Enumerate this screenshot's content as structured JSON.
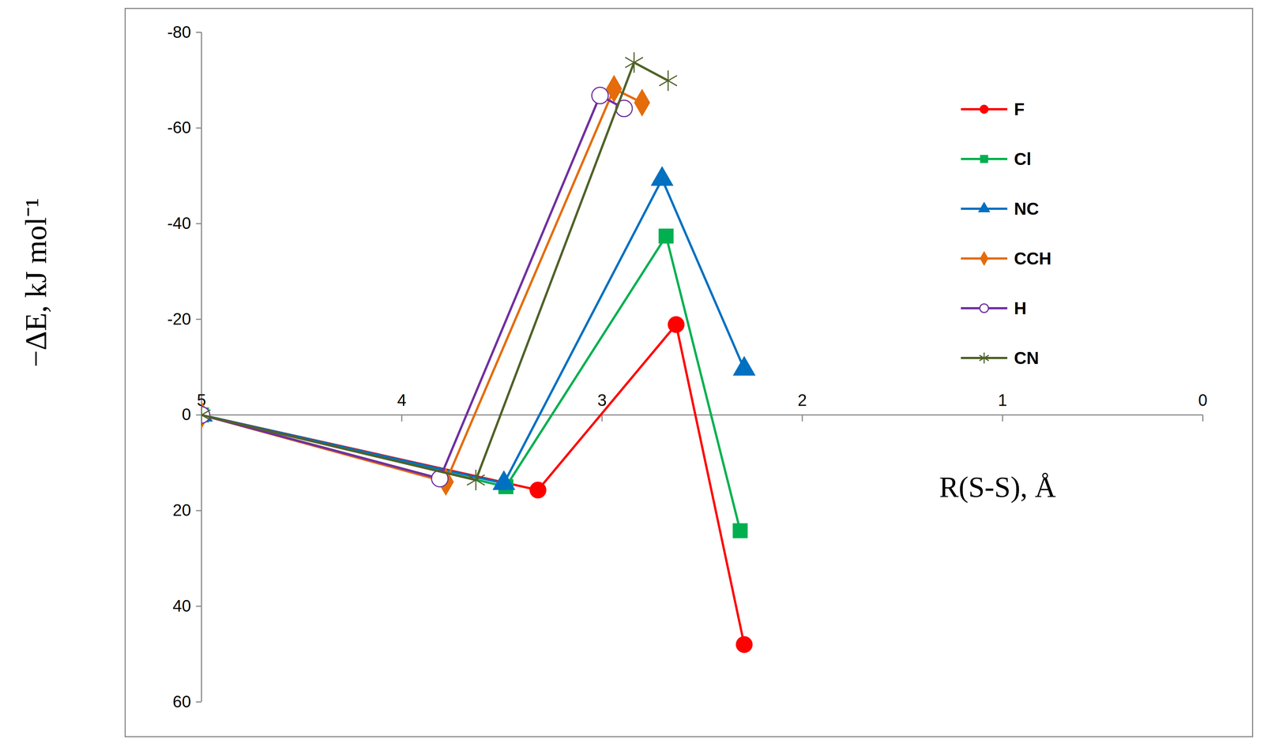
{
  "chart_data": {
    "type": "line",
    "x_label": "R(S-S), Å",
    "y_label": "−ΔE, kJ mol⁻¹",
    "xlim": [
      5,
      0
    ],
    "ylim": [
      60,
      -80
    ],
    "xticks": [
      5,
      4,
      3,
      2,
      1,
      0
    ],
    "yticks": [
      -80,
      -60,
      -40,
      -20,
      0,
      20,
      40,
      60
    ],
    "legend": "top-right",
    "series": [
      {
        "name": "F",
        "color": "#ff0000",
        "marker": "circle",
        "x": [
          5,
          3.32,
          2.63,
          2.29
        ],
        "values": [
          0,
          15.7,
          -18.9,
          48
        ]
      },
      {
        "name": "Cl",
        "color": "#00b050",
        "marker": "square",
        "x": [
          5,
          3.48,
          2.68,
          2.31
        ],
        "values": [
          0,
          15,
          -37.4,
          24.2
        ]
      },
      {
        "name": "NC",
        "color": "#0070c0",
        "marker": "triangle",
        "x": [
          5,
          3.49,
          2.7,
          2.29
        ],
        "values": [
          0,
          14.3,
          -49.3,
          -9.6
        ]
      },
      {
        "name": "CCH",
        "color": "#e46c0a",
        "marker": "diamond",
        "x": [
          5,
          3.78,
          2.94,
          2.8
        ],
        "values": [
          0,
          14,
          -68.2,
          -65.3
        ]
      },
      {
        "name": "H",
        "color": "#7030a0",
        "marker": "circle-open",
        "x": [
          5,
          3.81,
          3.01,
          2.89
        ],
        "values": [
          0,
          13.3,
          -66.8,
          -64.1
        ]
      },
      {
        "name": "CN",
        "color": "#4f6228",
        "marker": "asterisk",
        "x": [
          5,
          3.63,
          2.84,
          2.67
        ],
        "values": [
          0,
          13.6,
          -73.7,
          -69.9
        ]
      }
    ]
  }
}
